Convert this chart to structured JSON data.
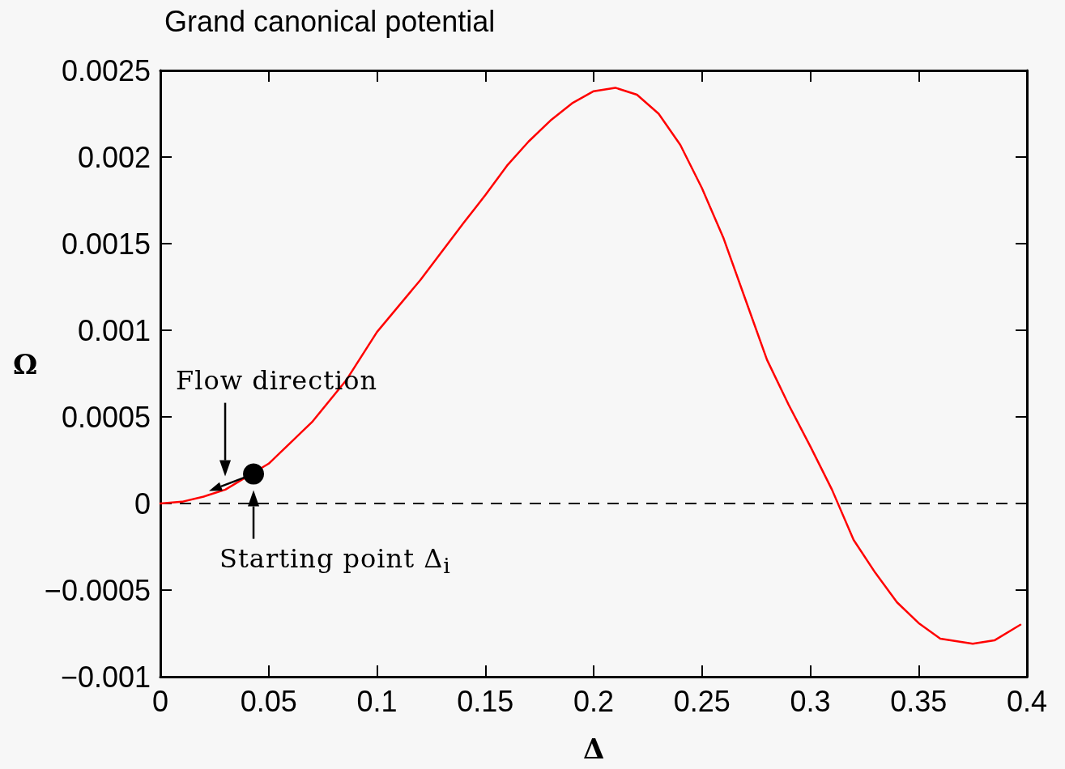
{
  "chart_data": {
    "type": "line",
    "title": "Grand canonical potential",
    "xlabel": "Δ",
    "ylabel": "Ω",
    "x": [
      0,
      0.01,
      0.02,
      0.03,
      0.05,
      0.07,
      0.0857,
      0.1,
      0.12,
      0.14,
      0.15,
      0.16,
      0.17,
      0.18,
      0.19,
      0.2,
      0.21,
      0.22,
      0.23,
      0.24,
      0.25,
      0.26,
      0.27,
      0.28,
      0.29,
      0.3,
      0.31,
      0.32,
      0.33,
      0.34,
      0.35,
      0.36,
      0.375,
      0.385,
      0.397
    ],
    "series": [
      {
        "color": "#ff0000",
        "marker": "none",
        "values": [
          0,
          1e-05,
          4e-05,
          8e-05,
          0.00023,
          0.00047,
          0.00071,
          0.00099,
          0.00129,
          0.00162,
          0.00178,
          0.00195,
          0.00209,
          0.00221,
          0.00231,
          0.00238,
          0.0024,
          0.00236,
          0.00225,
          0.00207,
          0.00182,
          0.00153,
          0.00118,
          0.00083,
          0.00057,
          0.00033,
          8e-05,
          -0.00021,
          -0.0004,
          -0.00057,
          -0.00069,
          -0.00078,
          -0.00081,
          -0.00079,
          -0.0007
        ]
      },
      {
        "type": "scatter",
        "color": "#000000",
        "marker": "circle",
        "x": [
          0.043
        ],
        "values": [
          0.00017
        ]
      }
    ],
    "xlim": [
      0,
      0.4
    ],
    "xticks": [
      0,
      0.05,
      0.1,
      0.15,
      0.2,
      0.25,
      0.3,
      0.35,
      0.4
    ],
    "ylim": [
      -0.001,
      0.0025
    ],
    "yticks": [
      {
        "value": -0.001,
        "label": "−0.001"
      },
      {
        "value": -0.0005,
        "label": "−0.0005"
      },
      0,
      0.0005,
      0.001,
      0.0015,
      0.002,
      0.0025
    ],
    "ref_lines": [
      {
        "axis": "y",
        "value": 0,
        "color": "#000000",
        "line_style": "dashed"
      }
    ],
    "annotations": [
      "Flow direction",
      {
        "text": "Starting point Δ$_{i}$",
        "x": 0.043,
        "y": 0.00017
      }
    ],
    "grid": false,
    "line_style": "solid"
  }
}
